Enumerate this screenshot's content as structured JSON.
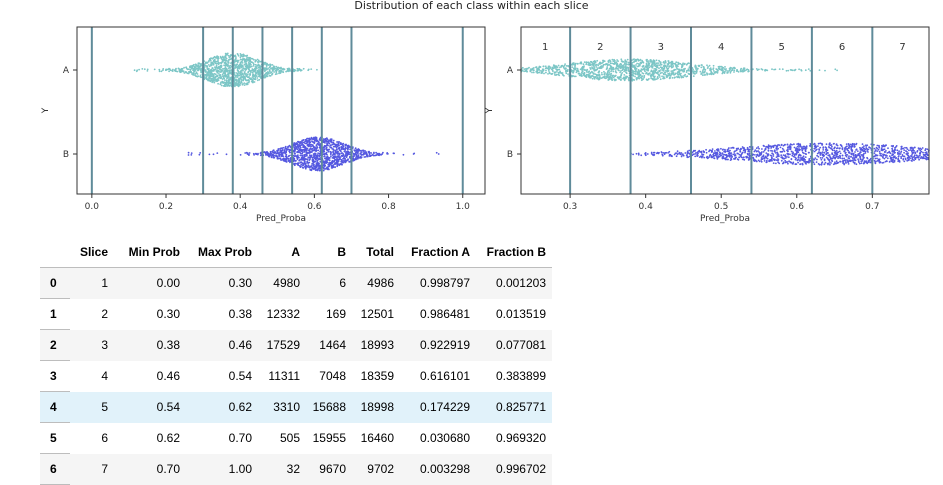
{
  "suptitle": "Distribution of each class within each slice",
  "chart_data": [
    {
      "type": "scatter",
      "subtype": "swarm",
      "title": "",
      "xlabel": "Pred_Proba",
      "ylabel": "Y",
      "xlim": [
        -0.04,
        1.06
      ],
      "xticks": [
        0.0,
        0.2,
        0.4,
        0.6,
        0.8,
        1.0
      ],
      "xtick_labels": [
        "0.0",
        "0.2",
        "0.4",
        "0.6",
        "0.8",
        "1.0"
      ],
      "categories": [
        "A",
        "B"
      ],
      "slice_boundaries": [
        0.0,
        0.3,
        0.38,
        0.46,
        0.54,
        0.62,
        0.7,
        1.0
      ],
      "series": [
        {
          "category": "A",
          "color": "#7cc6c6",
          "center": 0.38,
          "spread": 0.07,
          "min": 0.11,
          "max": 0.7
        },
        {
          "category": "B",
          "color": "#5558e0",
          "center": 0.61,
          "spread": 0.07,
          "min": 0.23,
          "max": 0.94
        }
      ],
      "grid": false,
      "legend": "none"
    },
    {
      "type": "scatter",
      "subtype": "swarm",
      "title": "",
      "xlabel": "Pred_Proba",
      "ylabel": "Y",
      "xlim": [
        0.235,
        0.775
      ],
      "xticks": [
        0.3,
        0.4,
        0.5,
        0.6,
        0.7
      ],
      "xtick_labels": [
        "0.3",
        "0.4",
        "0.5",
        "0.6",
        "0.7"
      ],
      "categories": [
        "A",
        "B"
      ],
      "slice_boundaries": [
        0.3,
        0.38,
        0.46,
        0.54,
        0.62,
        0.7
      ],
      "slice_labels": [
        {
          "label": "1",
          "x": 0.267
        },
        {
          "label": "2",
          "x": 0.34
        },
        {
          "label": "3",
          "x": 0.42
        },
        {
          "label": "4",
          "x": 0.5
        },
        {
          "label": "5",
          "x": 0.58
        },
        {
          "label": "6",
          "x": 0.66
        },
        {
          "label": "7",
          "x": 0.74
        }
      ],
      "series": [
        {
          "category": "A",
          "color": "#7cc6c6",
          "center": 0.38,
          "spread": 0.08,
          "min": 0.235,
          "max": 0.665
        },
        {
          "category": "B",
          "color": "#5558e0",
          "center": 0.64,
          "spread": 0.12,
          "min": 0.38,
          "max": 0.775
        }
      ],
      "grid": false,
      "legend": "none"
    }
  ],
  "table": {
    "columns": [
      "Slice",
      "Min Prob",
      "Max Prob",
      "A",
      "B",
      "Total",
      "Fraction A",
      "Fraction B"
    ],
    "highlight_row": 4,
    "rows": [
      {
        "index": "0",
        "cells": [
          "1",
          "0.00",
          "0.30",
          "4980",
          "6",
          "4986",
          "0.998797",
          "0.001203"
        ]
      },
      {
        "index": "1",
        "cells": [
          "2",
          "0.30",
          "0.38",
          "12332",
          "169",
          "12501",
          "0.986481",
          "0.013519"
        ]
      },
      {
        "index": "2",
        "cells": [
          "3",
          "0.38",
          "0.46",
          "17529",
          "1464",
          "18993",
          "0.922919",
          "0.077081"
        ]
      },
      {
        "index": "3",
        "cells": [
          "4",
          "0.46",
          "0.54",
          "11311",
          "7048",
          "18359",
          "0.616101",
          "0.383899"
        ]
      },
      {
        "index": "4",
        "cells": [
          "5",
          "0.54",
          "0.62",
          "3310",
          "15688",
          "18998",
          "0.174229",
          "0.825771"
        ]
      },
      {
        "index": "5",
        "cells": [
          "6",
          "0.62",
          "0.70",
          "505",
          "15955",
          "16460",
          "0.030680",
          "0.969320"
        ]
      },
      {
        "index": "6",
        "cells": [
          "7",
          "0.70",
          "1.00",
          "32",
          "9670",
          "9702",
          "0.003298",
          "0.996702"
        ]
      }
    ]
  }
}
